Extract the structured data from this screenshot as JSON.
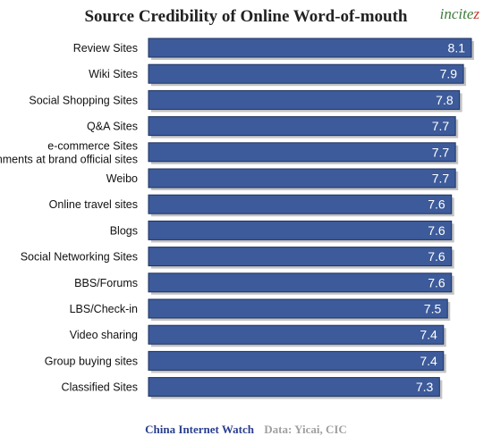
{
  "header": {
    "title": "Source Credibility of Online Word-of-mouth",
    "brand": "incitez"
  },
  "footer": {
    "site": "China Internet Watch",
    "source": "Data: Yicai, CIC"
  },
  "colors": {
    "bar": "#3d5b9a",
    "bar_border": "#1e3261",
    "shadow": "#c4c4c4",
    "value_text": "#ffffff"
  },
  "chart_data": {
    "type": "bar",
    "orientation": "horizontal",
    "title": "Source Credibility of Online Word-of-mouth",
    "categories": [
      "Review Sites",
      "Wiki Sites",
      "Social Shopping Sites",
      "Q&A Sites",
      "e-commerce Sites\nComments at brand official sites",
      "Weibo",
      "Online travel sites",
      "Blogs",
      "Social Networking Sites",
      "BBS/Forums",
      "LBS/Check-in",
      "Video sharing",
      "Group buying sites",
      "Classified Sites"
    ],
    "values": [
      8.1,
      7.9,
      7.8,
      7.7,
      7.7,
      7.7,
      7.6,
      7.6,
      7.6,
      7.6,
      7.5,
      7.4,
      7.4,
      7.3
    ],
    "data_labels": [
      "8.1",
      "7.9",
      "7.8",
      "7.7",
      "7.7",
      "7.7",
      "7.6",
      "7.6",
      "7.6",
      "7.6",
      "7.5",
      "7.4",
      "7.4",
      "7.3"
    ],
    "xlabel": "",
    "ylabel": "",
    "xlim": [
      0,
      8.1
    ],
    "grid": false,
    "legend": "none"
  }
}
